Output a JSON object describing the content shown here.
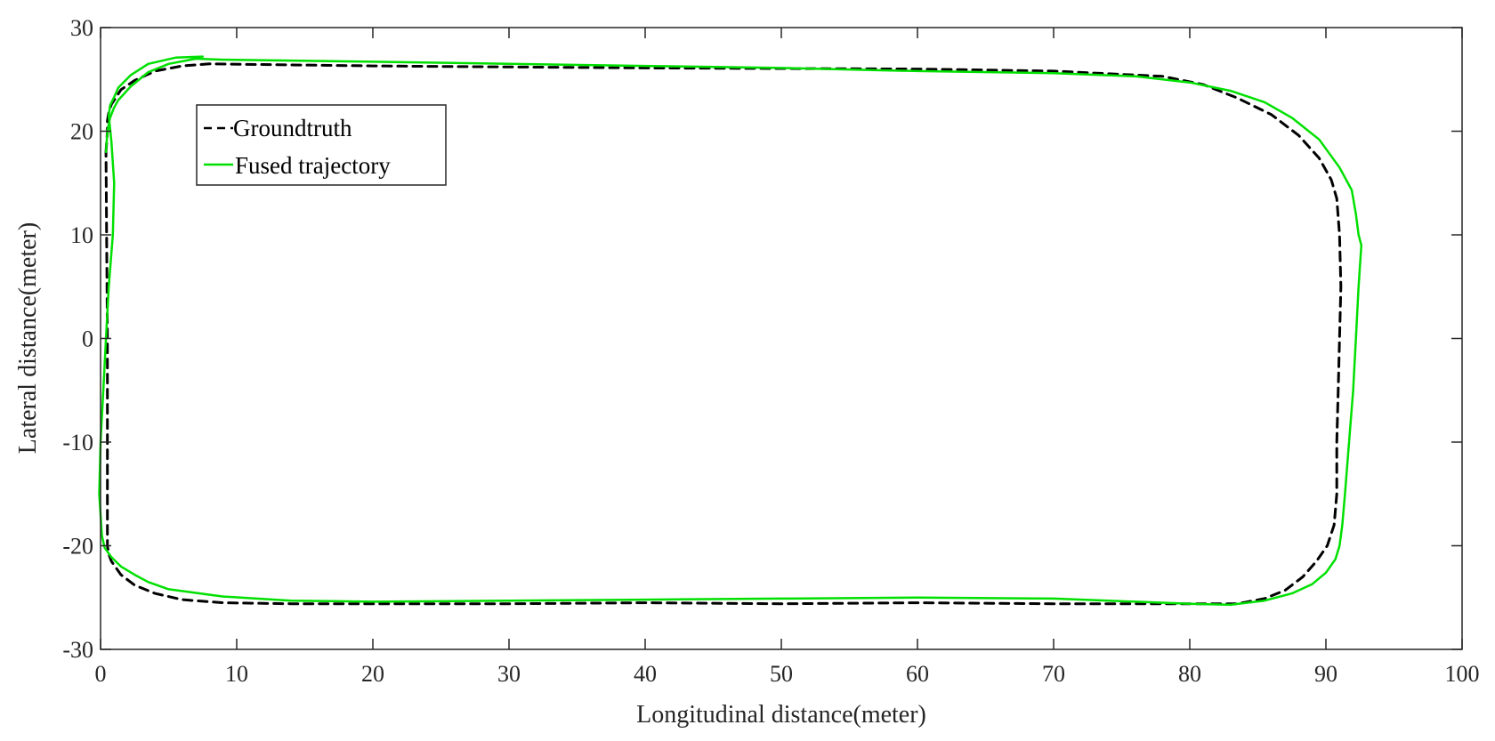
{
  "chart_data": {
    "type": "line",
    "title": "",
    "xlabel": "Longitudinal distance(meter)",
    "ylabel": "Lateral distance(meter)",
    "xlim": [
      0,
      100
    ],
    "ylim": [
      -30,
      30
    ],
    "xticks": [
      0,
      10,
      20,
      30,
      40,
      50,
      60,
      70,
      80,
      90,
      100
    ],
    "yticks": [
      -30,
      -20,
      -10,
      0,
      10,
      20,
      30
    ],
    "grid": false,
    "legend": {
      "position": "top-left"
    },
    "series": [
      {
        "name": "Groundtruth",
        "color": "#000000",
        "style": "dashed",
        "x": [
          0.4,
          0.5,
          0.5,
          0.6,
          0.8,
          1.2,
          1.5,
          2.5,
          4,
          6,
          8,
          20,
          40,
          60,
          70,
          78,
          81,
          83.5,
          86,
          88,
          89.5,
          90.4,
          90.8,
          91.0,
          91.1,
          91.0,
          90.9,
          90.8,
          90.8,
          90.6,
          90.1,
          89.3,
          88.3,
          87,
          85.5,
          83.5,
          80,
          70,
          60,
          50,
          40,
          30,
          20,
          14,
          9,
          6,
          4,
          2.5,
          1.5,
          0.8,
          0.6,
          0.5,
          0.5,
          0.5,
          0.4
        ],
        "y": [
          18,
          20,
          21,
          21.8,
          22.6,
          23.4,
          24,
          24.9,
          25.8,
          26.3,
          26.5,
          26.3,
          26.1,
          26,
          25.8,
          25.3,
          24.5,
          23.2,
          21.6,
          19.6,
          17.4,
          15.3,
          13.5,
          10,
          5,
          0,
          -5,
          -10,
          -15,
          -18,
          -20,
          -21.5,
          -23,
          -24.3,
          -25.1,
          -25.6,
          -25.6,
          -25.6,
          -25.5,
          -25.6,
          -25.5,
          -25.6,
          -25.6,
          -25.6,
          -25.5,
          -25.2,
          -24.6,
          -23.8,
          -22.8,
          -21.5,
          -20.8,
          -20,
          -10,
          0,
          18
        ]
      },
      {
        "name": "Fused trajectory",
        "color": "#00e000",
        "style": "solid",
        "x": [
          0.4,
          0.5,
          0.7,
          1.0,
          1.3,
          2.2,
          3.5,
          5,
          7,
          9,
          20,
          40,
          50,
          60,
          70,
          76,
          80,
          83,
          85.5,
          87.5,
          89.5,
          91,
          91.9,
          92.2,
          92.4,
          92.6,
          92.4,
          92.2,
          92.0,
          91.7,
          91.4,
          91.2,
          91.0,
          90.7,
          90.0,
          89.0,
          87.5,
          85.5,
          83,
          80,
          70,
          60,
          50,
          40,
          30,
          20,
          14,
          9,
          5,
          3.5,
          2.5,
          1.5,
          0.8,
          0.3,
          0.1,
          -0.1,
          0,
          0.2,
          0.4,
          0.6,
          0.9,
          1.0,
          0.8,
          0.6,
          0.7,
          1.0,
          1.3,
          2.2,
          3.5,
          5.5,
          7.5
        ],
        "y": [
          18,
          20,
          21.3,
          22.3,
          23,
          24.3,
          25.7,
          26.5,
          27.0,
          26.9,
          26.7,
          26.3,
          26.1,
          25.8,
          25.6,
          25.3,
          24.7,
          23.9,
          22.8,
          21.3,
          19.2,
          16.5,
          14.3,
          12,
          10,
          9,
          5,
          0,
          -5,
          -10,
          -15,
          -18,
          -20,
          -21.3,
          -22.6,
          -23.7,
          -24.6,
          -25.3,
          -25.7,
          -25.6,
          -25.1,
          -25.0,
          -25.1,
          -25.2,
          -25.3,
          -25.4,
          -25.3,
          -24.9,
          -24.2,
          -23.5,
          -22.8,
          -22,
          -21.1,
          -20.2,
          -19,
          -15,
          -10,
          -5,
          0,
          5,
          10,
          15,
          19,
          21.5,
          22.5,
          23.3,
          24.2,
          25.4,
          26.5,
          27.1,
          27.2
        ]
      }
    ]
  }
}
